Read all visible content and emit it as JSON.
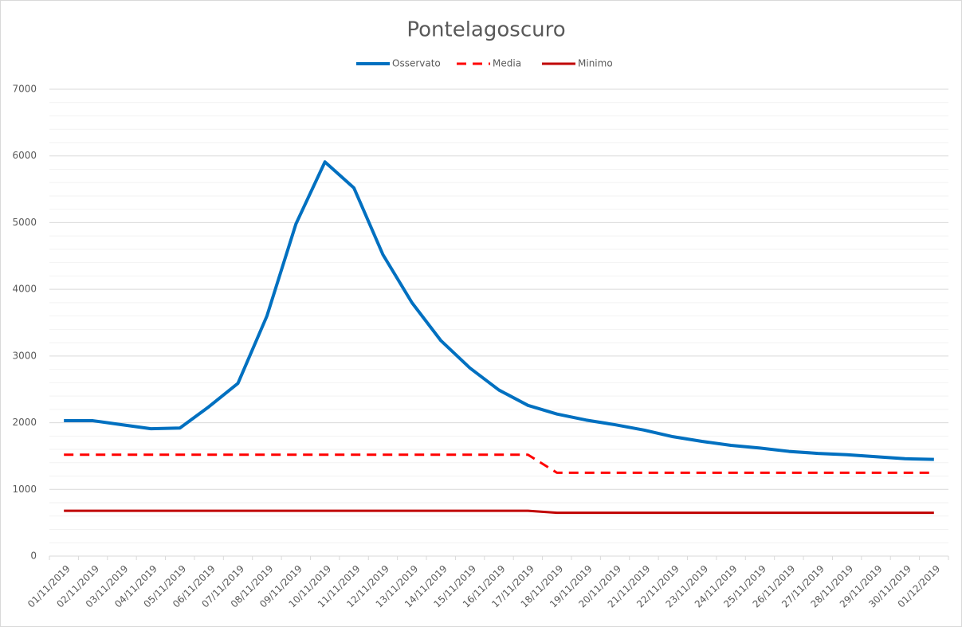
{
  "chart_data": {
    "type": "line",
    "title": "Pontelagoscuro",
    "categories": [
      "01/11/2019",
      "02/11/2019",
      "03/11/2019",
      "04/11/2019",
      "05/11/2019",
      "06/11/2019",
      "07/11/2019",
      "08/11/2019",
      "09/11/2019",
      "10/11/2019",
      "11/11/2019",
      "12/11/2019",
      "13/11/2019",
      "14/11/2019",
      "15/11/2019",
      "16/11/2019",
      "17/11/2019",
      "18/11/2019",
      "19/11/2019",
      "20/11/2019",
      "21/11/2019",
      "22/11/2019",
      "23/11/2019",
      "24/11/2019",
      "25/11/2019",
      "26/11/2019",
      "27/11/2019",
      "28/11/2019",
      "29/11/2019",
      "30/11/2019",
      "01/12/2019"
    ],
    "series": [
      {
        "name": "Osservato",
        "color": "#0070c0",
        "dash": false,
        "width": 4,
        "values": [
          2030,
          2030,
          1970,
          1910,
          1920,
          2240,
          2590,
          3600,
          4980,
          5910,
          5520,
          4520,
          3800,
          3230,
          2820,
          2490,
          2260,
          2130,
          2040,
          1970,
          1890,
          1790,
          1720,
          1660,
          1620,
          1570,
          1540,
          1520,
          1490,
          1460,
          1450
        ]
      },
      {
        "name": "Media",
        "color": "#ff0000",
        "dash": true,
        "width": 3,
        "values": [
          1520,
          1520,
          1520,
          1520,
          1520,
          1520,
          1520,
          1520,
          1520,
          1520,
          1520,
          1520,
          1520,
          1520,
          1520,
          1520,
          1520,
          1250,
          1250,
          1250,
          1250,
          1250,
          1250,
          1250,
          1250,
          1250,
          1250,
          1250,
          1250,
          1250,
          1250
        ]
      },
      {
        "name": "Minimo",
        "color": "#c00000",
        "dash": false,
        "width": 3,
        "values": [
          680,
          680,
          680,
          680,
          680,
          680,
          680,
          680,
          680,
          680,
          680,
          680,
          680,
          680,
          680,
          680,
          680,
          650,
          650,
          650,
          650,
          650,
          650,
          650,
          650,
          650,
          650,
          650,
          650,
          650,
          650
        ]
      }
    ],
    "ylim": [
      0,
      7000
    ],
    "yticks": [
      0,
      1000,
      2000,
      3000,
      4000,
      5000,
      6000,
      7000
    ],
    "minor_yticks": [
      200,
      400,
      600,
      800,
      1200,
      1400,
      1600,
      1800,
      2200,
      2400,
      2600,
      2800,
      3200,
      3400,
      3600,
      3800,
      4200,
      4400,
      4600,
      4800,
      5200,
      5400,
      5600,
      5800,
      6200,
      6400,
      6600,
      6800
    ],
    "grid": true,
    "legend": "top"
  }
}
